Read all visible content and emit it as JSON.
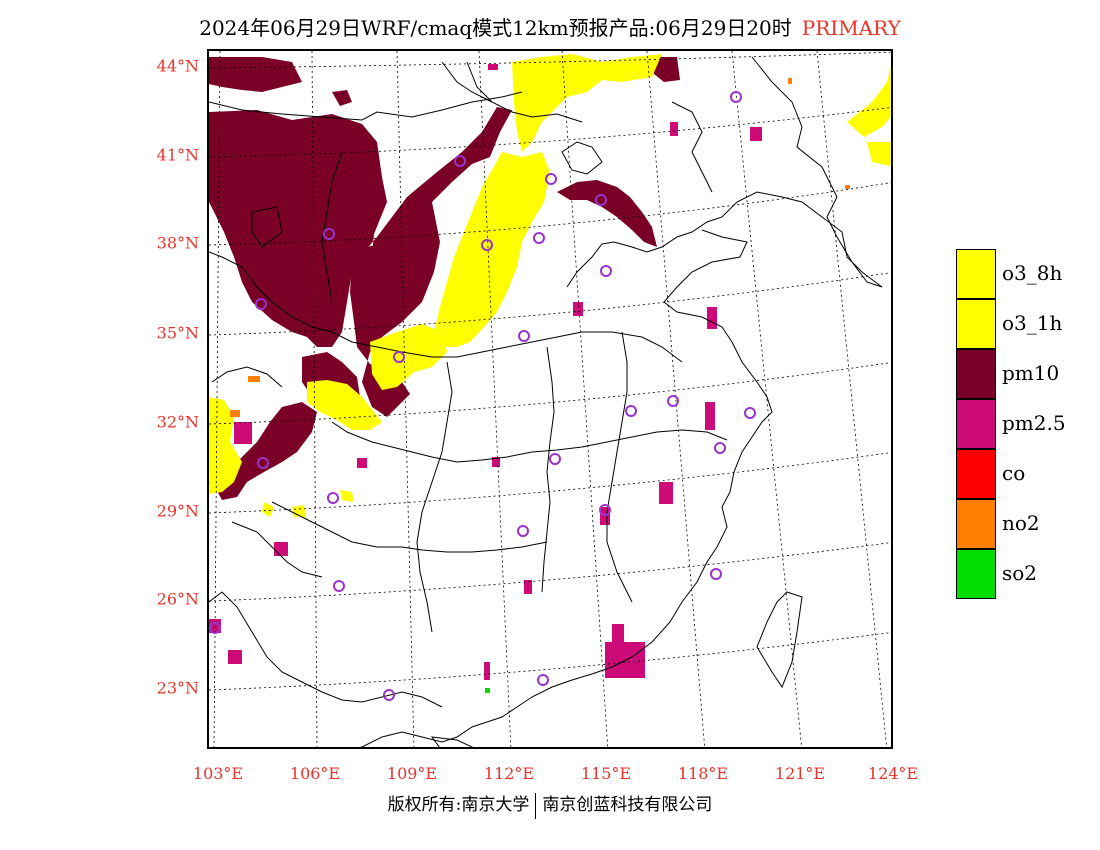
{
  "title": "2024年06月29日WRF/cmaq模式12km预报产品:06月29日20时",
  "title_flag": "PRIMARY",
  "lat_labels": [
    "44°N",
    "41°N",
    "38°N",
    "35°N",
    "32°N",
    "29°N",
    "26°N",
    "23°N"
  ],
  "lon_labels": [
    "103°E",
    "106°E",
    "109°E",
    "112°E",
    "115°E",
    "118°E",
    "121°E",
    "124°E"
  ],
  "legend": [
    {
      "label": "o3_8h",
      "color": "#ffff00"
    },
    {
      "label": "o3_1h",
      "color": "#ffff00"
    },
    {
      "label": "pm10",
      "color": "#7a0028"
    },
    {
      "label": "pm2.5",
      "color": "#cc0a78"
    },
    {
      "label": "co",
      "color": "#ff0000"
    },
    {
      "label": "no2",
      "color": "#ff8000"
    },
    {
      "label": "so2",
      "color": "#00dd00"
    }
  ],
  "footer": {
    "left": "版权所有:南京大学",
    "right": "南京创蓝科技有限公司"
  },
  "colors": {
    "title_accent": "#e8332a",
    "station_marker": "#9933cc",
    "o3": "#ffff00",
    "pm10": "#7a0028",
    "pm25": "#cc0a78"
  }
}
